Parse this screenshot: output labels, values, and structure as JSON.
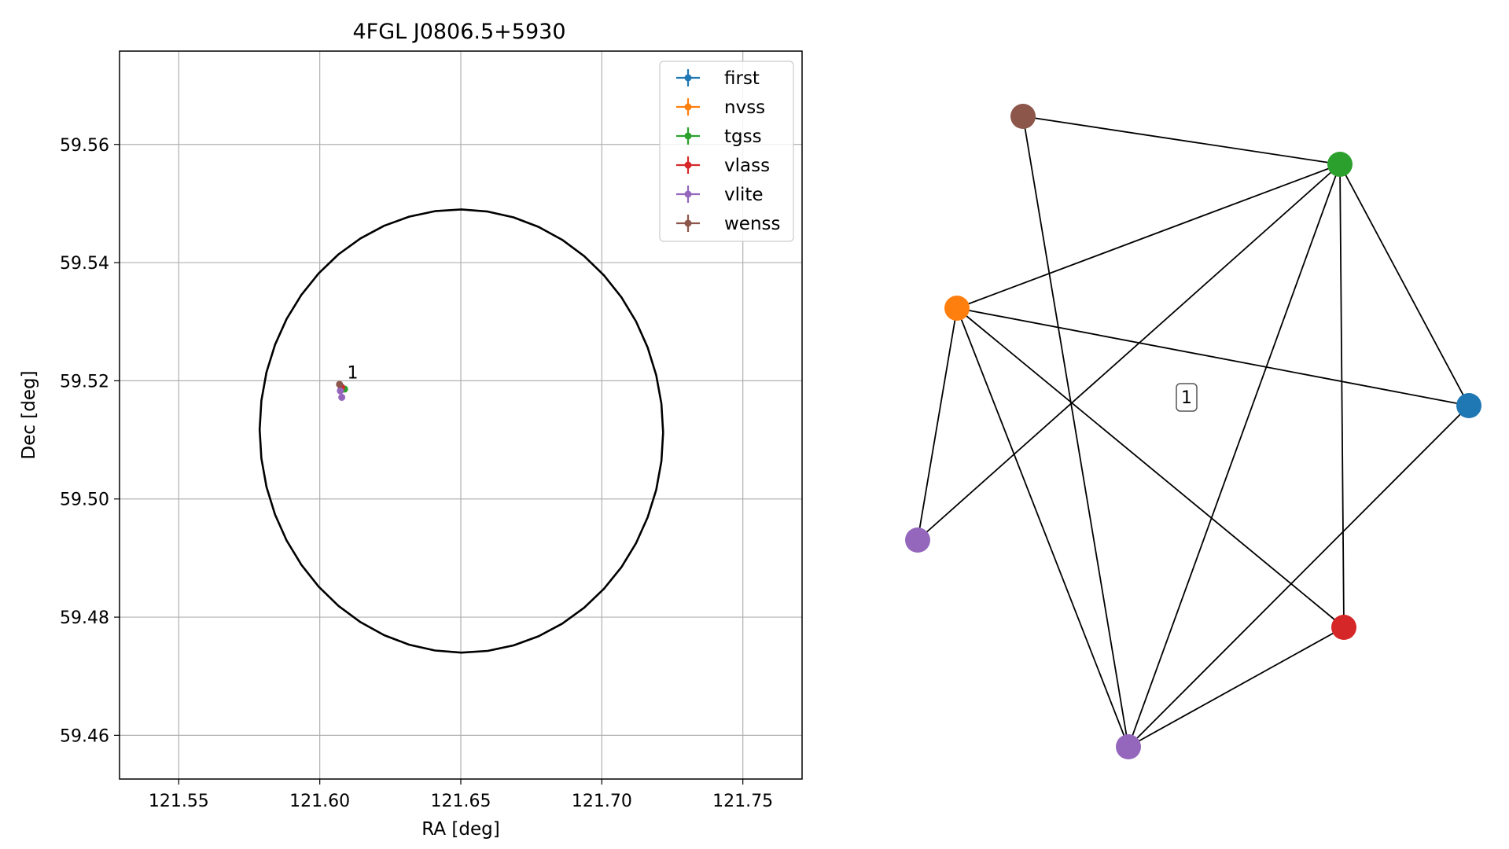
{
  "chart_data": [
    {
      "type": "scatter",
      "title": "4FGL J0806.5+5930",
      "xlabel": "RA [deg]",
      "ylabel": "Dec [deg]",
      "xlim": [
        121.529,
        121.771
      ],
      "ylim": [
        59.4526,
        59.5758
      ],
      "xticks": [
        121.55,
        121.6,
        121.65,
        121.7,
        121.75
      ],
      "xtick_labels": [
        "121.55",
        "121.60",
        "121.65",
        "121.70",
        "121.75"
      ],
      "yticks": [
        59.46,
        59.48,
        59.5,
        59.52,
        59.54,
        59.56
      ],
      "ytick_labels": [
        "59.46",
        "59.48",
        "59.50",
        "59.52",
        "59.54",
        "59.56"
      ],
      "grid": true,
      "legend_position": "top-right",
      "ellipse": {
        "center": [
          121.6502,
          59.5115
        ],
        "ra_radius": 0.0718,
        "dec_radius": 0.0375,
        "tilt_deg": -5,
        "color": "#000000"
      },
      "series": [
        {
          "name": "first",
          "color": "#1f77b4",
          "points": [
            {
              "x": 121.6076,
              "y": 59.519
            }
          ]
        },
        {
          "name": "nvss",
          "color": "#ff7f0e",
          "points": [
            {
              "x": 121.6082,
              "y": 59.5186
            }
          ]
        },
        {
          "name": "tgss",
          "color": "#2ca02c",
          "points": [
            {
              "x": 121.6088,
              "y": 59.5186
            }
          ]
        },
        {
          "name": "vlass",
          "color": "#d62728",
          "points": [
            {
              "x": 121.6077,
              "y": 59.5189
            }
          ]
        },
        {
          "name": "vlite",
          "color": "#9467bd",
          "points": [
            {
              "x": 121.6073,
              "y": 59.5183
            },
            {
              "x": 121.6078,
              "y": 59.5172
            }
          ]
        },
        {
          "name": "wenss",
          "color": "#8c564b",
          "points": [
            {
              "x": 121.607,
              "y": 59.5194
            }
          ]
        }
      ],
      "annotations": [
        {
          "text": "1",
          "x": 121.6097,
          "y": 59.5204
        }
      ]
    },
    {
      "type": "network",
      "nodes": [
        {
          "id": "first",
          "color": "#1f77b4"
        },
        {
          "id": "nvss",
          "color": "#ff7f0e"
        },
        {
          "id": "tgss",
          "color": "#2ca02c"
        },
        {
          "id": "vlass",
          "color": "#d62728"
        },
        {
          "id": "vlite_a",
          "color": "#9467bd"
        },
        {
          "id": "vlite_b",
          "color": "#9467bd"
        },
        {
          "id": "wenss",
          "color": "#8c564b"
        }
      ],
      "edges": [
        [
          "wenss",
          "tgss"
        ],
        [
          "wenss",
          "vlite_b"
        ],
        [
          "tgss",
          "nvss"
        ],
        [
          "tgss",
          "vlite_a"
        ],
        [
          "tgss",
          "vlite_b"
        ],
        [
          "tgss",
          "vlass"
        ],
        [
          "tgss",
          "first"
        ],
        [
          "nvss",
          "first"
        ],
        [
          "nvss",
          "vlite_a"
        ],
        [
          "nvss",
          "vlite_b"
        ],
        [
          "nvss",
          "vlass"
        ],
        [
          "vlite_b",
          "vlass"
        ],
        [
          "vlite_b",
          "first"
        ]
      ],
      "label": "1"
    }
  ]
}
